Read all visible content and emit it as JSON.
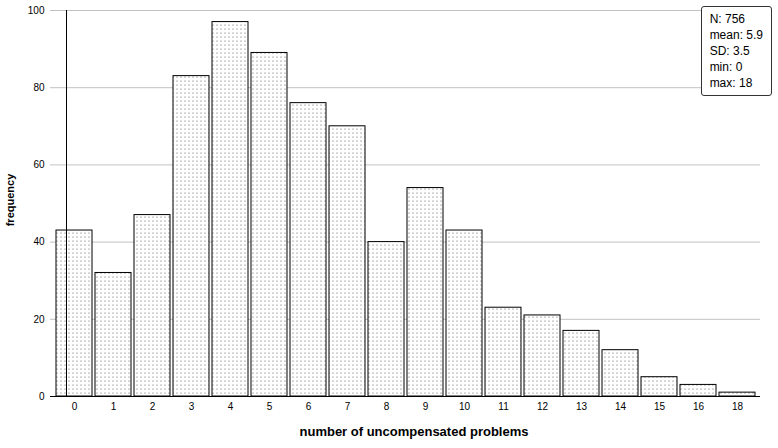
{
  "chart_data": {
    "type": "bar",
    "categories": [
      "0",
      "1",
      "2",
      "3",
      "4",
      "5",
      "6",
      "7",
      "8",
      "9",
      "10",
      "11",
      "12",
      "13",
      "14",
      "15",
      "16",
      "18"
    ],
    "values": [
      43,
      32,
      47,
      83,
      97,
      89,
      76,
      70,
      40,
      54,
      43,
      23,
      21,
      17,
      12,
      5,
      3,
      1
    ],
    "color": "#ffffff",
    "x_label": "number of uncompensated problems",
    "y_label": "frequency",
    "ylim": [
      0,
      100
    ],
    "yticks": [
      0,
      20,
      40,
      60,
      80,
      100
    ],
    "grid": true,
    "annotations": [
      "N: 756",
      "mean: 5.9",
      "SD: 3.5",
      "min: 0",
      "max: 18"
    ]
  }
}
